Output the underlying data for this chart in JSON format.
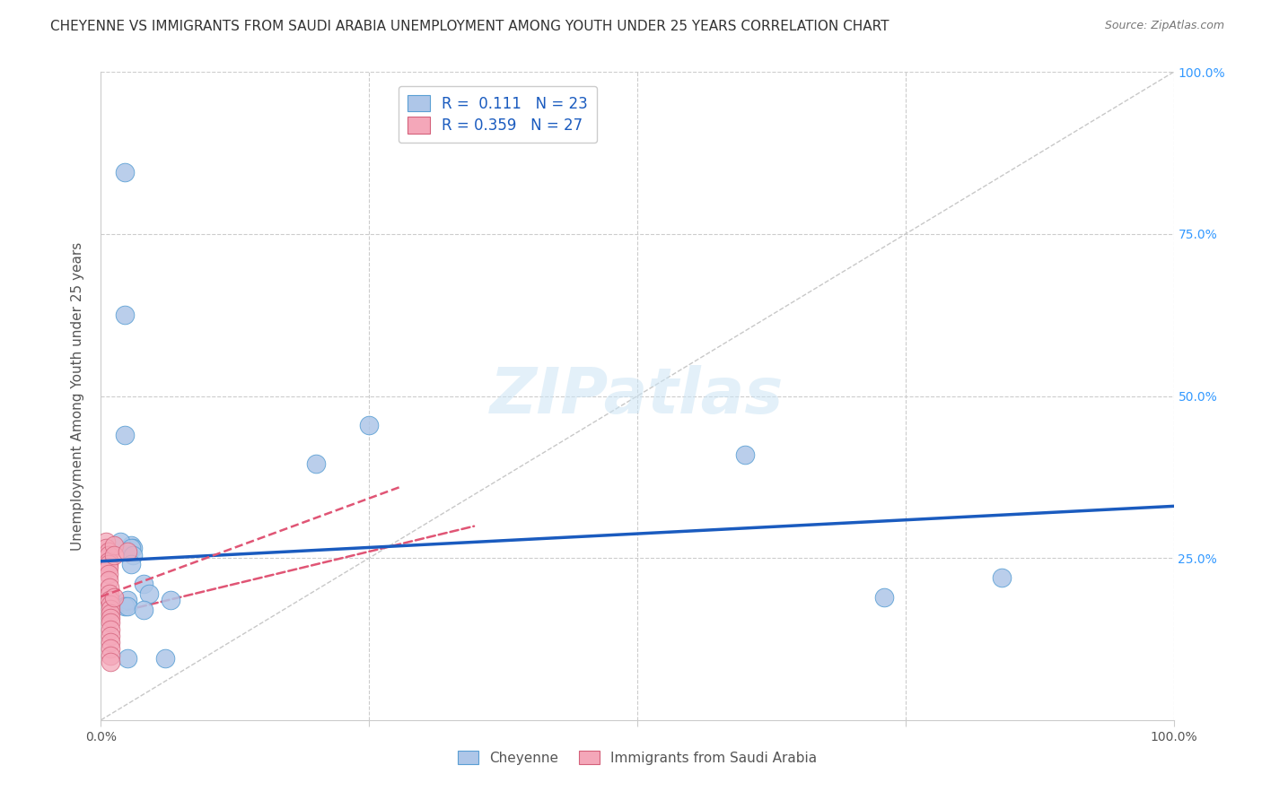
{
  "title": "CHEYENNE VS IMMIGRANTS FROM SAUDI ARABIA UNEMPLOYMENT AMONG YOUTH UNDER 25 YEARS CORRELATION CHART",
  "source": "Source: ZipAtlas.com",
  "ylabel": "Unemployment Among Youth under 25 years",
  "legend_label1": "Cheyenne",
  "legend_label2": "Immigrants from Saudi Arabia",
  "R1": "0.111",
  "N1": "23",
  "R2": "0.359",
  "N2": "27",
  "watermark": "ZIPatlas",
  "cheyenne_color": "#aec6e8",
  "cheyenne_edge": "#5a9fd4",
  "saudi_color": "#f4a7b9",
  "saudi_edge": "#d4607a",
  "trend_line_color": "#1a5bbf",
  "trend_line2_color": "#e05575",
  "diagonal_color": "#c8c8c8",
  "cheyenne_points": [
    [
      0.022,
      0.845
    ],
    [
      0.022,
      0.625
    ],
    [
      0.022,
      0.44
    ],
    [
      0.028,
      0.27
    ],
    [
      0.03,
      0.265
    ],
    [
      0.018,
      0.275
    ],
    [
      0.028,
      0.265
    ],
    [
      0.03,
      0.255
    ],
    [
      0.25,
      0.455
    ],
    [
      0.2,
      0.395
    ],
    [
      0.028,
      0.24
    ],
    [
      0.04,
      0.21
    ],
    [
      0.045,
      0.195
    ],
    [
      0.065,
      0.185
    ],
    [
      0.025,
      0.185
    ],
    [
      0.022,
      0.175
    ],
    [
      0.025,
      0.175
    ],
    [
      0.04,
      0.17
    ],
    [
      0.025,
      0.095
    ],
    [
      0.06,
      0.095
    ],
    [
      0.6,
      0.41
    ],
    [
      0.73,
      0.19
    ],
    [
      0.84,
      0.22
    ]
  ],
  "saudi_points": [
    [
      0.005,
      0.275
    ],
    [
      0.005,
      0.265
    ],
    [
      0.007,
      0.26
    ],
    [
      0.007,
      0.255
    ],
    [
      0.007,
      0.245
    ],
    [
      0.007,
      0.24
    ],
    [
      0.007,
      0.235
    ],
    [
      0.007,
      0.225
    ],
    [
      0.007,
      0.215
    ],
    [
      0.008,
      0.205
    ],
    [
      0.008,
      0.195
    ],
    [
      0.008,
      0.185
    ],
    [
      0.009,
      0.178
    ],
    [
      0.009,
      0.172
    ],
    [
      0.009,
      0.165
    ],
    [
      0.009,
      0.158
    ],
    [
      0.009,
      0.15
    ],
    [
      0.009,
      0.14
    ],
    [
      0.009,
      0.13
    ],
    [
      0.009,
      0.12
    ],
    [
      0.009,
      0.11
    ],
    [
      0.009,
      0.1
    ],
    [
      0.009,
      0.09
    ],
    [
      0.012,
      0.27
    ],
    [
      0.012,
      0.255
    ],
    [
      0.012,
      0.19
    ],
    [
      0.025,
      0.26
    ]
  ],
  "xlim": [
    0.0,
    1.0
  ],
  "ylim": [
    0.0,
    1.0
  ],
  "grid_color": "#cccccc",
  "background_color": "#ffffff",
  "title_fontsize": 11,
  "axis_label_fontsize": 11,
  "tick_fontsize": 10,
  "source_fontsize": 9
}
